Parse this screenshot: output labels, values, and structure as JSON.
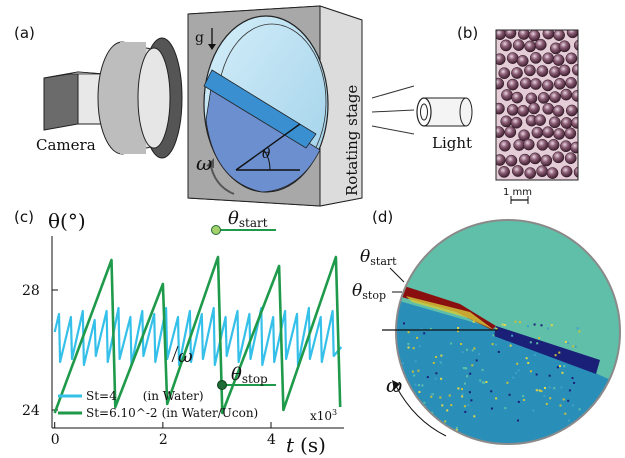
{
  "panels": {
    "a": "(a)",
    "b": "(b)",
    "c": "(c)",
    "d": "(d)"
  },
  "schematic": {
    "camera": "Camera",
    "g": "g",
    "stage": "Rotating stage",
    "light": "Light",
    "theta": "θ",
    "omega": "ω"
  },
  "photo": {
    "scalebar": "1 mm"
  },
  "plot": {
    "ylabel": "θ(°)",
    "xlabel_var": "t",
    "xlabel_unit": "(s)",
    "x_multiplier": "x10",
    "x_multiplier_exp": "3",
    "theta_start": "θ",
    "theta_start_sub": "start",
    "theta_stop": "θ",
    "theta_stop_sub": "stop",
    "omega": "ω",
    "colors": {
      "water": "#35c0ea",
      "ucon": "#1f9a4a",
      "start_dot": "#a6d06b",
      "stop_dot": "#1f6b35"
    }
  },
  "chart_data": {
    "type": "line",
    "xlabel": "t (s)",
    "x_unit_multiplier": "x10^3",
    "ylabel": "θ(°)",
    "xlim": [
      -0.05,
      5.35
    ],
    "ylim": [
      23.4,
      29.8
    ],
    "x_ticks": [
      0,
      2,
      4
    ],
    "x_tick_labels": [
      "0",
      "2",
      "4"
    ],
    "y_ticks": [
      24,
      28
    ],
    "y_tick_labels": [
      "24",
      "28"
    ],
    "legend_position": "bottom-left",
    "series": [
      {
        "name": "St=4",
        "label_extra": "(in Water)",
        "color": "#35c0ea",
        "description": "fast sawtooth",
        "x": [
          0.0,
          0.08,
          0.1,
          0.3,
          0.32,
          0.52,
          0.54,
          0.74,
          0.76,
          0.96,
          0.98,
          1.18,
          1.2,
          1.4,
          1.42,
          1.62,
          1.64,
          1.84,
          1.86,
          2.06,
          2.08,
          2.28,
          2.3,
          2.5,
          2.52,
          2.72,
          2.74,
          2.94,
          2.96,
          3.16,
          3.18,
          3.38,
          3.4,
          3.6,
          3.62,
          3.82,
          3.84,
          4.04,
          4.06,
          4.26,
          4.28,
          4.48,
          4.5,
          4.7,
          4.72,
          4.92,
          4.94,
          5.14,
          5.16,
          5.3
        ],
        "y": [
          26.6,
          27.2,
          25.6,
          27.1,
          25.7,
          27.3,
          25.5,
          27.0,
          25.8,
          27.3,
          25.6,
          27.4,
          25.7,
          27.1,
          25.5,
          27.3,
          25.8,
          27.2,
          25.6,
          27.4,
          25.7,
          27.1,
          25.5,
          27.3,
          25.6,
          27.2,
          25.7,
          27.4,
          25.5,
          27.1,
          25.8,
          27.3,
          25.6,
          27.2,
          25.7,
          27.4,
          25.5,
          27.1,
          25.6,
          27.3,
          25.7,
          27.2,
          25.5,
          27.4,
          25.7,
          27.1,
          25.6,
          27.3,
          25.8,
          26.1
        ]
      },
      {
        "name": "St=6.10^-2",
        "label_extra": "(in Water/Ucon)",
        "color": "#1f9a4a",
        "description": "slow sawtooth",
        "x": [
          0.0,
          1.05,
          1.12,
          2.0,
          2.08,
          3.02,
          3.1,
          4.15,
          4.23,
          5.2,
          5.28
        ],
        "y": [
          23.9,
          29.0,
          24.1,
          28.2,
          24.2,
          29.1,
          23.9,
          28.8,
          24.0,
          29.1,
          24.1
        ]
      }
    ],
    "annotations": [
      {
        "text": "θstart",
        "x": 3.02,
        "y": 29.1
      },
      {
        "text": "θstop",
        "x": 3.1,
        "y": 23.9
      }
    ]
  }
}
